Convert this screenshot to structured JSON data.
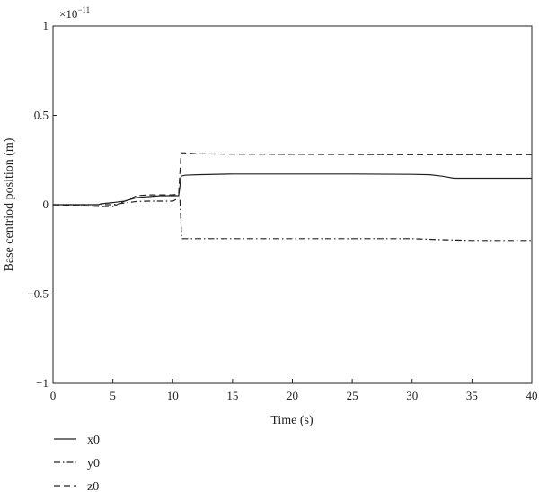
{
  "chart_data": {
    "type": "line",
    "title": "",
    "xlabel": "Time (s)",
    "ylabel": "Base centriod position (m)",
    "y_multiplier": "×10",
    "y_exponent": "−11",
    "xlim": [
      0,
      40
    ],
    "ylim": [
      -1,
      1
    ],
    "x_ticks": [
      0,
      5,
      10,
      15,
      20,
      25,
      30,
      35,
      40
    ],
    "x_tick_labels": [
      "0",
      "5",
      "10",
      "15",
      "20",
      "25",
      "30",
      "35",
      "40"
    ],
    "y_ticks": [
      1,
      0.5,
      0,
      -0.5,
      -1
    ],
    "y_tick_labels": [
      "1",
      "0.5",
      "0",
      "−0.5",
      "−1"
    ],
    "grid": false,
    "legend_position": "below-left",
    "series": [
      {
        "name": "x0",
        "style": "solid",
        "color": "#222222",
        "x": [
          0,
          3.8,
          4.0,
          5.0,
          6.0,
          6.5,
          7.0,
          8.0,
          9.0,
          10.0,
          10.5,
          10.6,
          10.7,
          11.0,
          12.0,
          15.0,
          20.0,
          25.0,
          30.0,
          31.5,
          32.5,
          33.5,
          35.0,
          40.0
        ],
        "y": [
          0,
          0,
          0.005,
          0.012,
          0.02,
          0.03,
          0.04,
          0.045,
          0.05,
          0.05,
          0.05,
          0.1,
          0.16,
          0.165,
          0.168,
          0.172,
          0.172,
          0.172,
          0.17,
          0.168,
          0.16,
          0.148,
          0.148,
          0.148
        ]
      },
      {
        "name": "y0",
        "style": "dashdot",
        "color": "#222222",
        "x": [
          0,
          4.0,
          5.0,
          6.0,
          7.0,
          8.0,
          9.0,
          10.0,
          10.6,
          10.75,
          11.0,
          15.0,
          20.0,
          25.0,
          30.0,
          32.0,
          35.0,
          40.0
        ],
        "y": [
          0,
          0,
          0,
          0.01,
          0.018,
          0.02,
          0.02,
          0.02,
          0.04,
          -0.19,
          -0.19,
          -0.19,
          -0.19,
          -0.19,
          -0.19,
          -0.195,
          -0.2,
          -0.2
        ],
        "hide_legend": false
      },
      {
        "name": "z0",
        "style": "dashed",
        "color": "#222222",
        "x": [
          0,
          4.0,
          5.0,
          6.0,
          7.0,
          8.0,
          9.0,
          10.0,
          10.5,
          10.7,
          11.0,
          12.0,
          15.0,
          20.0,
          25.0,
          30.0,
          35.0,
          40.0
        ],
        "y": [
          0,
          -0.01,
          -0.01,
          0.02,
          0.05,
          0.055,
          0.055,
          0.055,
          0.06,
          0.29,
          0.29,
          0.285,
          0.283,
          0.282,
          0.281,
          0.28,
          0.28,
          0.28
        ]
      }
    ]
  }
}
